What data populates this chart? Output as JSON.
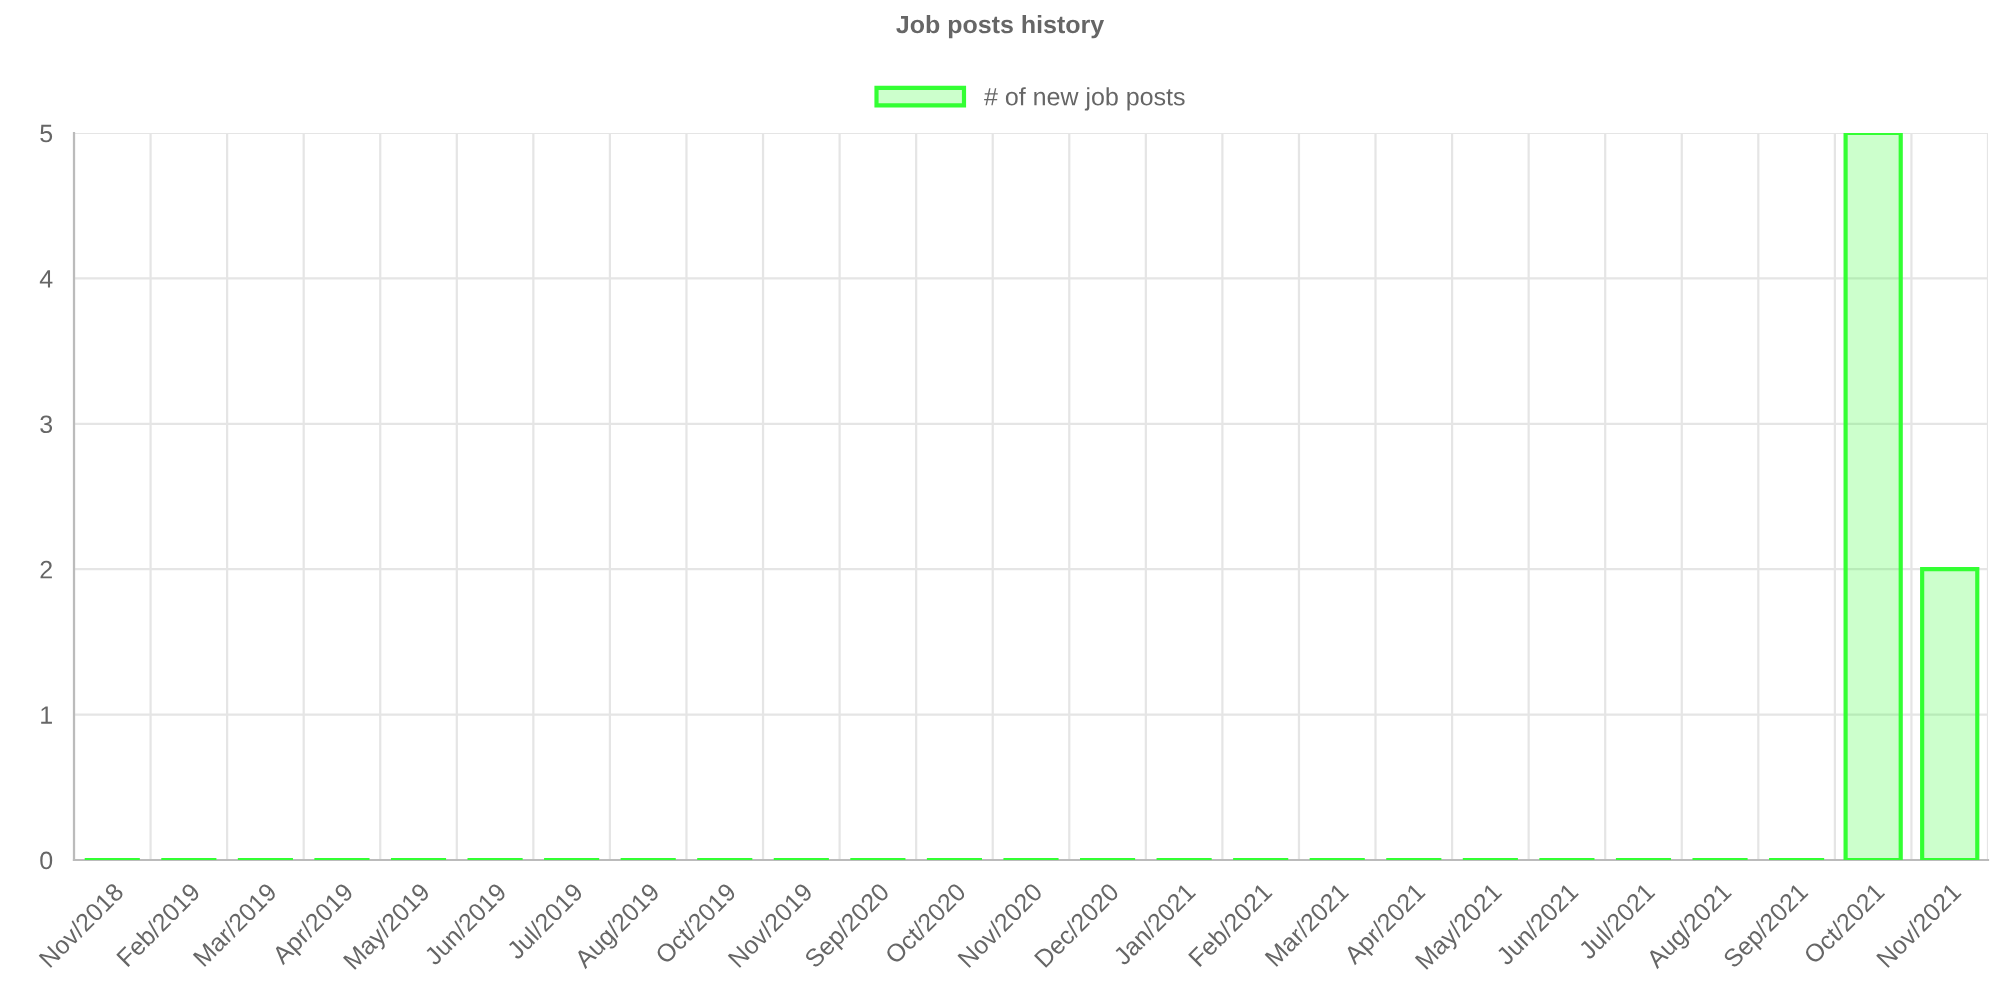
{
  "chart_data": {
    "type": "bar",
    "title": "Job posts history",
    "categories": [
      "Nov/2018",
      "Feb/2019",
      "Mar/2019",
      "Apr/2019",
      "May/2019",
      "Jun/2019",
      "Jul/2019",
      "Aug/2019",
      "Oct/2019",
      "Nov/2019",
      "Sep/2020",
      "Oct/2020",
      "Nov/2020",
      "Dec/2020",
      "Jan/2021",
      "Feb/2021",
      "Mar/2021",
      "Apr/2021",
      "May/2021",
      "Jun/2021",
      "Jul/2021",
      "Aug/2021",
      "Sep/2021",
      "Oct/2021",
      "Nov/2021"
    ],
    "series": [
      {
        "name": "# of new job posts",
        "color": "#33ff33",
        "values": [
          0,
          0,
          0,
          0,
          0,
          0,
          0,
          0,
          0,
          0,
          0,
          0,
          0,
          0,
          0,
          0,
          0,
          0,
          0,
          0,
          0,
          0,
          0,
          5,
          2
        ]
      }
    ],
    "ylim": [
      0,
      5
    ],
    "yticks": [
      0,
      1,
      2,
      3,
      4,
      5
    ],
    "grid": true,
    "legend": "top"
  }
}
